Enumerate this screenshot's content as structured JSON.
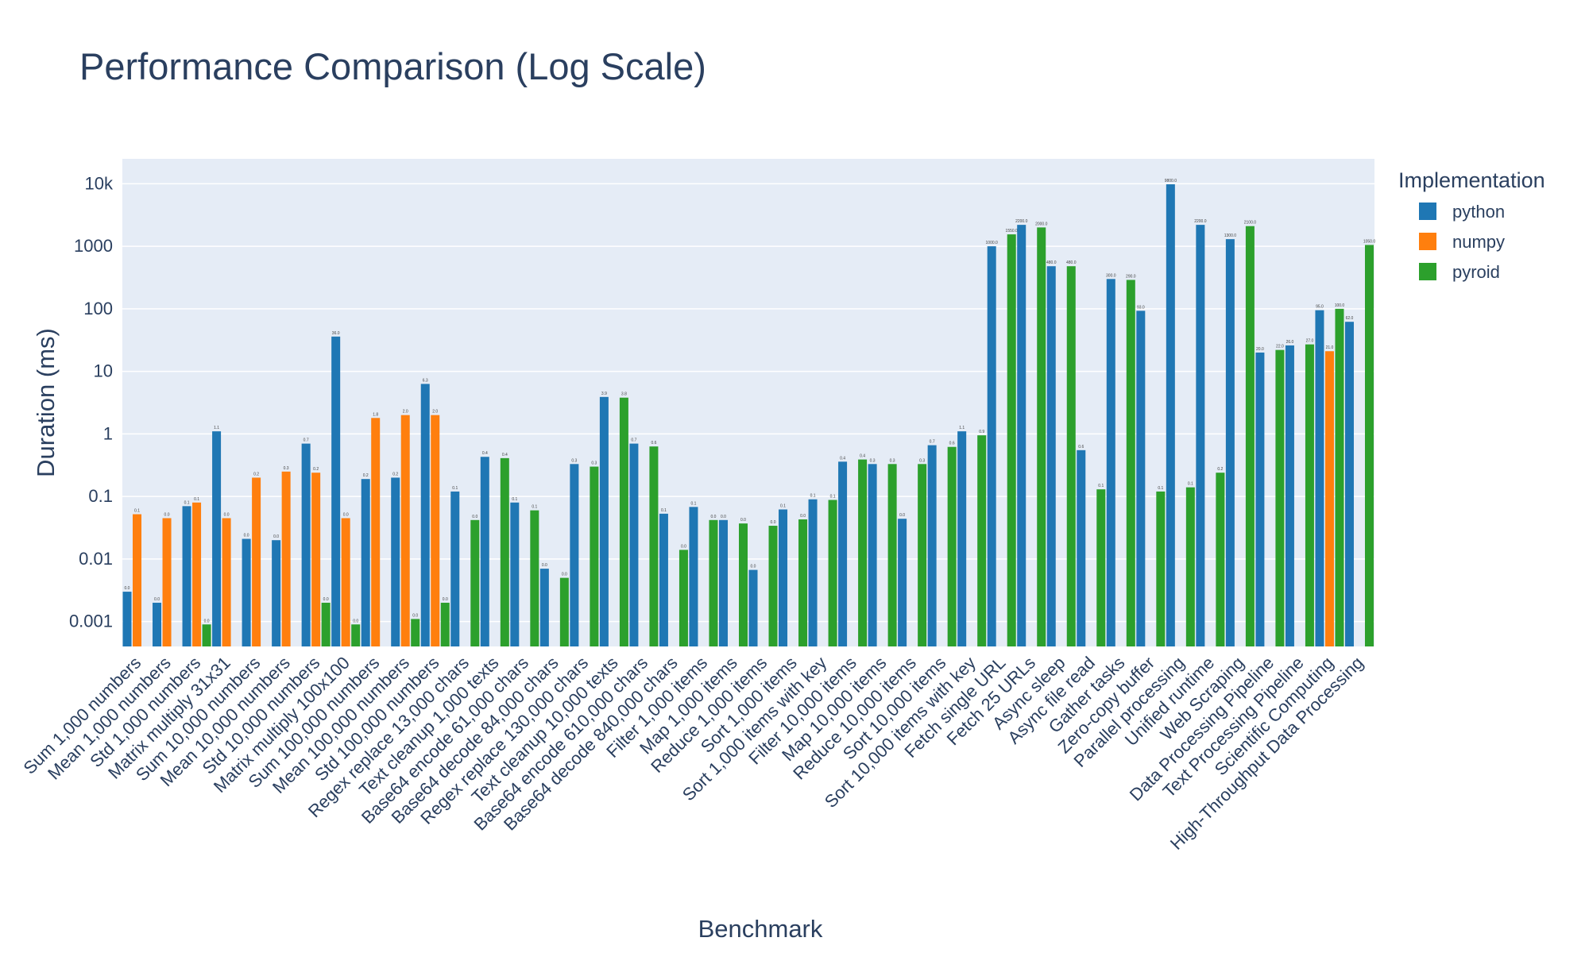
{
  "chart_data": {
    "type": "bar",
    "title": "Performance Comparison (Log Scale)",
    "xlabel": "Benchmark",
    "ylabel": "Duration (ms)",
    "yscale": "log",
    "ylim": [
      0.0004,
      25000
    ],
    "yticks": [
      {
        "value": 0.001,
        "label": "0.001"
      },
      {
        "value": 0.01,
        "label": "0.01"
      },
      {
        "value": 0.1,
        "label": "0.1"
      },
      {
        "value": 1,
        "label": "1"
      },
      {
        "value": 10,
        "label": "10"
      },
      {
        "value": 100,
        "label": "100"
      },
      {
        "value": 1000,
        "label": "1000"
      },
      {
        "value": 10000,
        "label": "10k"
      }
    ],
    "legend": {
      "title": "Implementation",
      "position": "right"
    },
    "series_order": [
      "python",
      "numpy",
      "pyroid"
    ],
    "colors": {
      "python": "#1f77b4",
      "numpy": "#ff7f0e",
      "pyroid": "#2ca02c"
    },
    "bar_mode": "grouped, only present values drawn",
    "grid": true,
    "categories": [
      {
        "name": "Sum 1,000 numbers",
        "python": 0.003,
        "numpy": 0.052
      },
      {
        "name": "Mean 1,000 numbers",
        "python": 0.002,
        "numpy": 0.045
      },
      {
        "name": "Std 1,000 numbers",
        "python": 0.07,
        "numpy": 0.08,
        "pyroid": 0.0009
      },
      {
        "name": "Matrix multiply 31x31",
        "python": 1.1,
        "numpy": 0.045
      },
      {
        "name": "Sum 10,000 numbers",
        "python": 0.021,
        "numpy": 0.2
      },
      {
        "name": "Mean 10,000 numbers",
        "python": 0.02,
        "numpy": 0.25
      },
      {
        "name": "Std 10,000 numbers",
        "python": 0.7,
        "numpy": 0.24,
        "pyroid": 0.002
      },
      {
        "name": "Matrix multiply 100x100",
        "python": 36.0,
        "numpy": 0.045,
        "pyroid": 0.0009
      },
      {
        "name": "Sum 100,000 numbers",
        "python": 0.19,
        "numpy": 1.8
      },
      {
        "name": "Mean 100,000 numbers",
        "python": 0.2,
        "numpy": 2.0,
        "pyroid": 0.0011
      },
      {
        "name": "Std 100,000 numbers",
        "python": 6.3,
        "numpy": 2.0,
        "pyroid": 0.002
      },
      {
        "name": "Regex replace 13,000 chars",
        "python": 0.12,
        "pyroid": 0.042
      },
      {
        "name": "Text cleanup 1,000 texts",
        "python": 0.43,
        "pyroid": 0.41
      },
      {
        "name": "Base64 encode 61,000 chars",
        "python": 0.08,
        "pyroid": 0.06
      },
      {
        "name": "Base64 decode 84,000 chars",
        "python": 0.007,
        "pyroid": 0.005
      },
      {
        "name": "Regex replace 130,000 chars",
        "python": 0.33,
        "pyroid": 0.3
      },
      {
        "name": "Text cleanup 10,000 texts",
        "python": 3.9,
        "pyroid": 3.8
      },
      {
        "name": "Base64 encode 610,000 chars",
        "python": 0.7,
        "pyroid": 0.63
      },
      {
        "name": "Base64 decode 840,000 chars",
        "python": 0.053,
        "pyroid": 0.014
      },
      {
        "name": "Filter 1,000 items",
        "python": 0.068,
        "pyroid": 0.042
      },
      {
        "name": "Map 1,000 items",
        "python": 0.042,
        "pyroid": 0.037
      },
      {
        "name": "Reduce 1,000 items",
        "python": 0.0067,
        "pyroid": 0.034
      },
      {
        "name": "Sort 1,000 items",
        "python": 0.062,
        "pyroid": 0.043
      },
      {
        "name": "Sort 1,000 items with key",
        "python": 0.09,
        "pyroid": 0.088
      },
      {
        "name": "Filter 10,000 items",
        "python": 0.36,
        "pyroid": 0.39
      },
      {
        "name": "Map 10,000 items",
        "python": 0.33,
        "pyroid": 0.33
      },
      {
        "name": "Reduce 10,000 items",
        "python": 0.044,
        "pyroid": 0.33
      },
      {
        "name": "Sort 10,000 items",
        "python": 0.66,
        "pyroid": 0.62
      },
      {
        "name": "Sort 10,000 items with key",
        "python": 1.1,
        "pyroid": 0.95
      },
      {
        "name": "Fetch single URL",
        "python": 1000,
        "pyroid": 1550
      },
      {
        "name": "Fetch 25 URLs",
        "python": 2200,
        "pyroid": 2000
      },
      {
        "name": "Async sleep",
        "python": 480,
        "pyroid": 480
      },
      {
        "name": "Async file read",
        "python": 0.55,
        "pyroid": 0.13
      },
      {
        "name": "Gather tasks",
        "python": 300,
        "pyroid": 290
      },
      {
        "name": "Zero-copy buffer",
        "python": 93,
        "pyroid": 0.12
      },
      {
        "name": "Parallel processing",
        "python": 9800,
        "pyroid": 0.14
      },
      {
        "name": "Unified runtime",
        "python": 2200,
        "pyroid": 0.24
      },
      {
        "name": "Web Scraping",
        "python": 1300,
        "pyroid": 2100
      },
      {
        "name": "Data Processing Pipeline",
        "python": 20,
        "pyroid": 22
      },
      {
        "name": "Text Processing Pipeline",
        "python": 26,
        "pyroid": 27
      },
      {
        "name": "Scientific Computing",
        "python": 95,
        "numpy": 21,
        "pyroid": 100
      },
      {
        "name": "High-Throughput Data Processing",
        "python": 62,
        "pyroid": 1050
      }
    ]
  }
}
